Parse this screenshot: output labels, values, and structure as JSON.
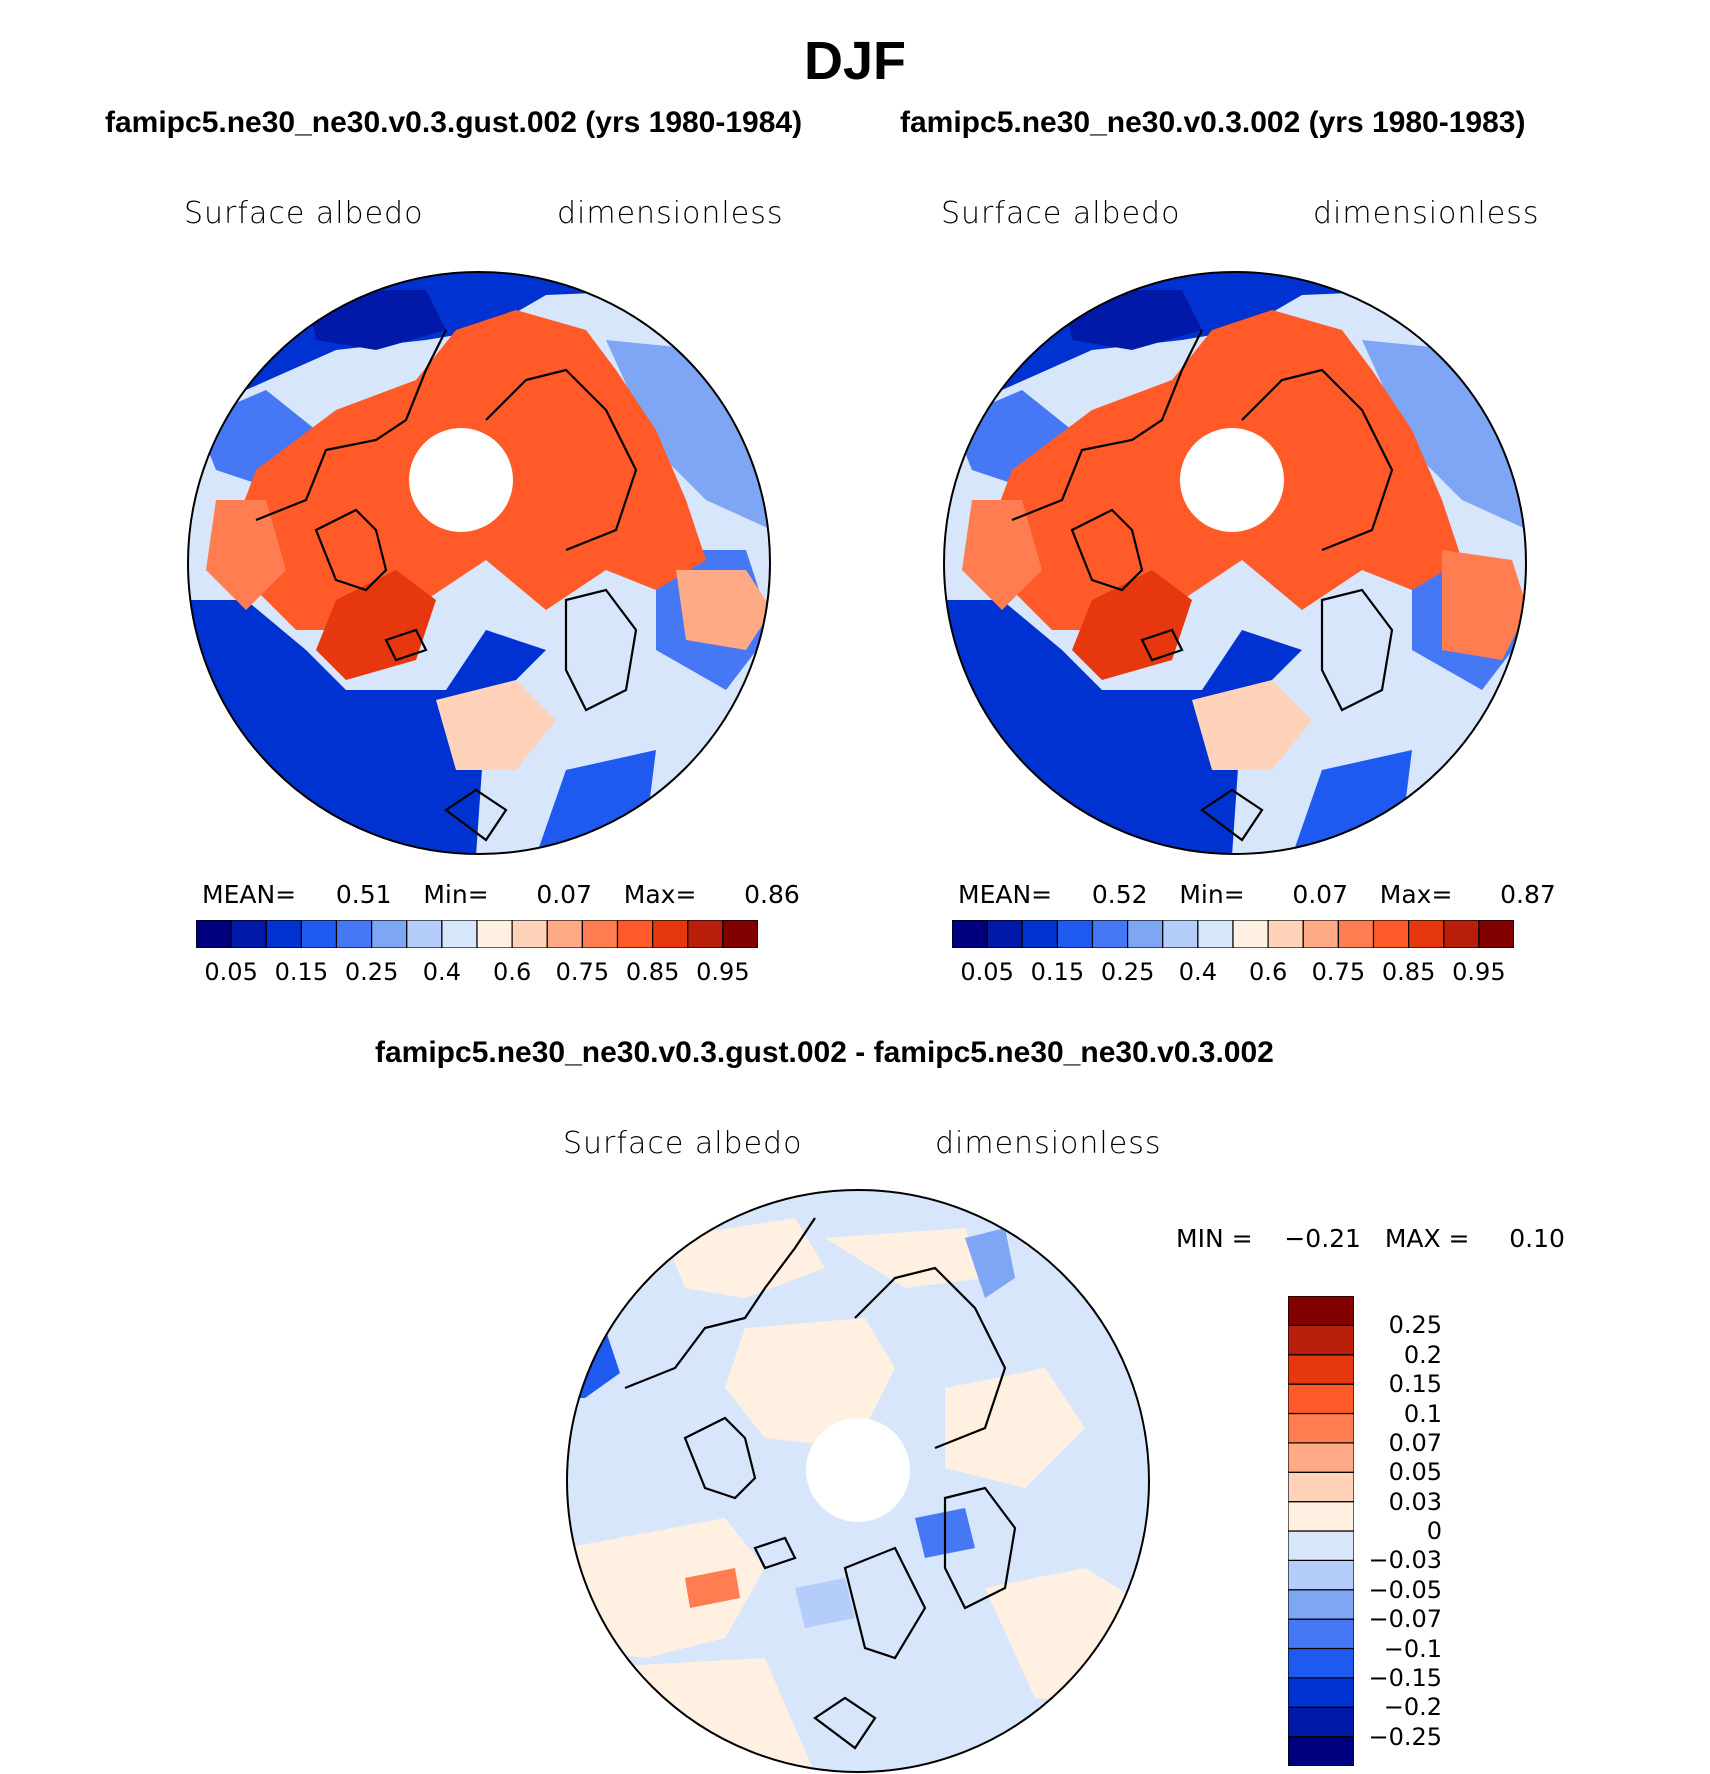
{
  "title": "DJF",
  "panels": {
    "left": {
      "case_title": "famipc5.ne30_ne30.v0.3.gust.002 (yrs 1980-1984)",
      "variable": "Surface albedo",
      "units": "dimensionless",
      "stats": {
        "mean_label": "MEAN=",
        "mean": "0.51",
        "min_label": "Min=",
        "min": "0.07",
        "max_label": "Max=",
        "max": "0.86"
      }
    },
    "right": {
      "case_title": "famipc5.ne30_ne30.v0.3.002 (yrs 1980-1983)",
      "variable": "Surface albedo",
      "units": "dimensionless",
      "stats": {
        "mean_label": "MEAN=",
        "mean": "0.52",
        "min_label": "Min=",
        "min": "0.07",
        "max_label": "Max=",
        "max": "0.87"
      }
    },
    "diff": {
      "case_title": "famipc5.ne30_ne30.v0.3.gust.002 - famipc5.ne30_ne30.v0.3.002",
      "variable": "Surface albedo",
      "units": "dimensionless",
      "stats": {
        "min_label": "MIN =",
        "min": "−0.21",
        "max_label": "MAX =",
        "max": "0.10"
      }
    }
  },
  "colorbar_abs": {
    "colors": [
      "#00007f",
      "#0019a8",
      "#0032d2",
      "#1e5af0",
      "#4678f5",
      "#7fa5f5",
      "#b4cdfa",
      "#d7e6fa",
      "#fff0e1",
      "#ffd2b9",
      "#ffaa87",
      "#ff7d50",
      "#ff5a28",
      "#e6370f",
      "#b91e0a",
      "#820000"
    ],
    "ticks": [
      "0.05",
      "0.15",
      "0.25",
      "0.4",
      "0.6",
      "0.75",
      "0.85",
      "0.95"
    ]
  },
  "colorbar_diff": {
    "colors": [
      "#00007f",
      "#0019a8",
      "#0032d2",
      "#1e5af0",
      "#4678f5",
      "#7fa5f5",
      "#b4cdfa",
      "#d7e6fa",
      "#fff0e1",
      "#ffd2b9",
      "#ffaa87",
      "#ff7d50",
      "#ff5a28",
      "#e6370f",
      "#b91e0a",
      "#820000"
    ],
    "ticks": [
      "0.25",
      "0.2",
      "0.15",
      "0.1",
      "0.07",
      "0.05",
      "0.03",
      "0",
      "−0.03",
      "−0.05",
      "−0.07",
      "−0.1",
      "−0.15",
      "−0.2",
      "−0.25"
    ]
  }
}
